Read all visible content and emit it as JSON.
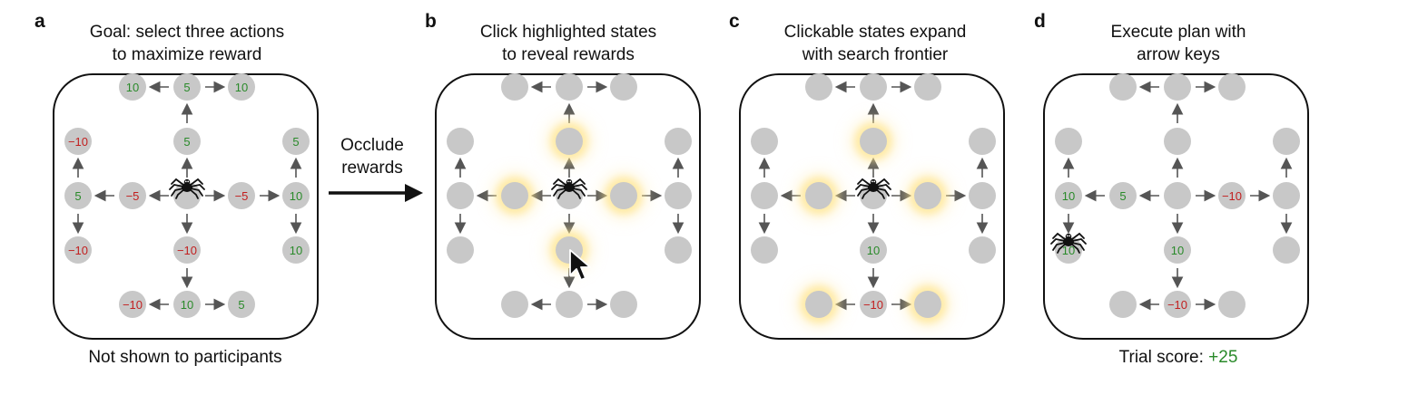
{
  "panels": [
    {
      "letter": "a",
      "title_line1": "Goal: select three actions",
      "title_line2": "to maximize reward",
      "caption": "Not shown to participants"
    },
    {
      "letter": "b",
      "title_line1": "Click highlighted states",
      "title_line2": "to reveal rewards",
      "caption": ""
    },
    {
      "letter": "c",
      "title_line1": "Clickable states expand",
      "title_line2": "with search frontier",
      "caption": ""
    },
    {
      "letter": "d",
      "title_line1": "Execute plan with",
      "title_line2": "arrow keys",
      "caption_prefix": "Trial score: ",
      "caption_score": "+25"
    }
  ],
  "occlude": {
    "line1": "Occlude",
    "line2": "rewards"
  },
  "values": {
    "a": {
      "up1": "5",
      "up2": "5",
      "up3l": "10",
      "up3r": "10",
      "down1": "−10",
      "down2": "10",
      "down3l": "−10",
      "down3r": "5",
      "left1": "−5",
      "left2": "5",
      "left3u": "−10",
      "left3d": "−10",
      "right1": "−5",
      "right2": "10",
      "right3u": "5",
      "right3d": "10"
    },
    "b": {},
    "c": {
      "down1": "10",
      "down2": "−10"
    },
    "d": {
      "left1": "5",
      "left2": "10",
      "left3d": "10",
      "right1": "−10",
      "down1": "10",
      "down2": "−10"
    }
  },
  "glow": {
    "b": [
      "up1",
      "down1",
      "left1",
      "right1"
    ],
    "c": [
      "up1",
      "left1",
      "right1",
      "down3l",
      "down3r"
    ],
    "d": []
  },
  "spider_pos": {
    "a": "center",
    "b": "center",
    "c": "center",
    "d": "left3d"
  },
  "cursor_panel": "b"
}
